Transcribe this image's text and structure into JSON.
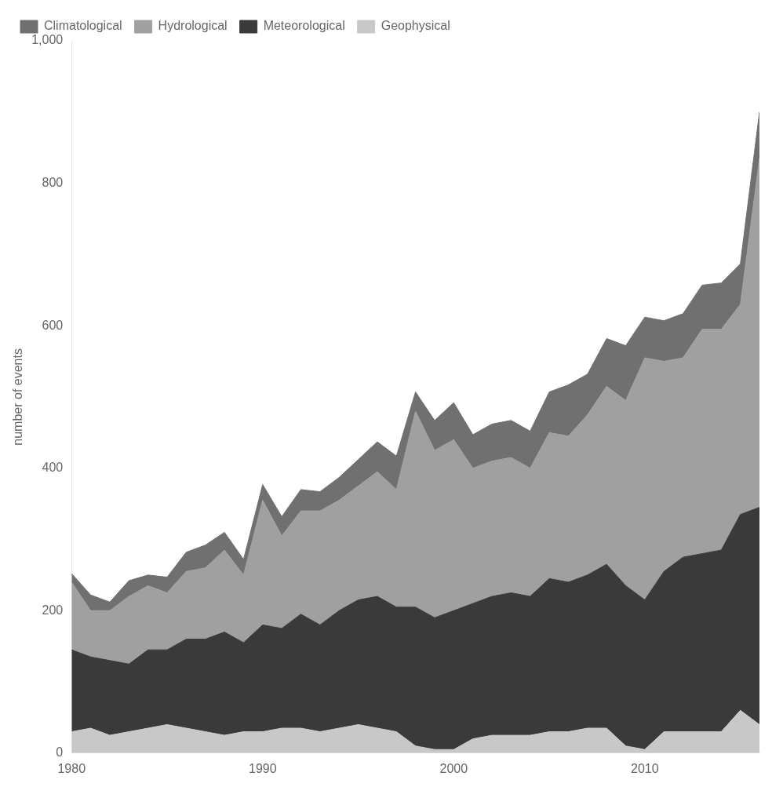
{
  "chart_data": {
    "type": "area",
    "stacked": true,
    "y_label": "number of events",
    "x": [
      1980,
      1981,
      1982,
      1983,
      1984,
      1985,
      1986,
      1987,
      1988,
      1989,
      1990,
      1991,
      1992,
      1993,
      1994,
      1995,
      1996,
      1997,
      1998,
      1999,
      2000,
      2001,
      2002,
      2003,
      2004,
      2005,
      2006,
      2007,
      2008,
      2009,
      2010,
      2011,
      2012,
      2013,
      2014,
      2015,
      2016
    ],
    "series": [
      {
        "name": "Geophysical",
        "color": "#c8c8c8",
        "values": [
          30,
          35,
          25,
          30,
          35,
          40,
          35,
          30,
          25,
          30,
          30,
          35,
          35,
          30,
          35,
          40,
          35,
          30,
          10,
          5,
          5,
          20,
          25,
          25,
          25,
          30,
          30,
          35,
          35,
          10,
          5,
          30,
          30,
          30,
          30,
          60,
          40
        ]
      },
      {
        "name": "Meteorological",
        "color": "#3a3a3a",
        "values": [
          115,
          100,
          105,
          95,
          110,
          105,
          125,
          130,
          145,
          125,
          150,
          140,
          160,
          150,
          165,
          175,
          185,
          175,
          195,
          185,
          195,
          190,
          195,
          200,
          195,
          215,
          210,
          215,
          230,
          225,
          210,
          225,
          245,
          250,
          255,
          275,
          305
        ]
      },
      {
        "name": "Hydrological",
        "color": "#a0a0a0",
        "values": [
          95,
          65,
          70,
          95,
          90,
          80,
          95,
          100,
          115,
          95,
          175,
          130,
          145,
          160,
          155,
          160,
          175,
          165,
          275,
          235,
          240,
          190,
          190,
          190,
          180,
          205,
          205,
          225,
          250,
          260,
          340,
          295,
          280,
          315,
          310,
          295,
          490
        ]
      },
      {
        "name": "Climatological",
        "color": "#707070",
        "values": [
          12,
          22,
          12,
          22,
          15,
          22,
          27,
          32,
          25,
          22,
          22,
          27,
          30,
          27,
          32,
          37,
          42,
          47,
          27,
          42,
          52,
          47,
          52,
          52,
          52,
          57,
          72,
          57,
          67,
          77,
          57,
          57,
          62,
          62,
          65,
          57,
          65
        ]
      }
    ],
    "xlim": [
      1980,
      2016
    ],
    "xticks": [
      1980,
      1990,
      2000,
      2010
    ],
    "ylim": [
      0,
      1000
    ],
    "yticks": [
      0,
      200,
      400,
      600,
      800,
      {
        "value": 1000,
        "label": "1,000"
      }
    ],
    "grid": false,
    "legend": "upper left"
  }
}
